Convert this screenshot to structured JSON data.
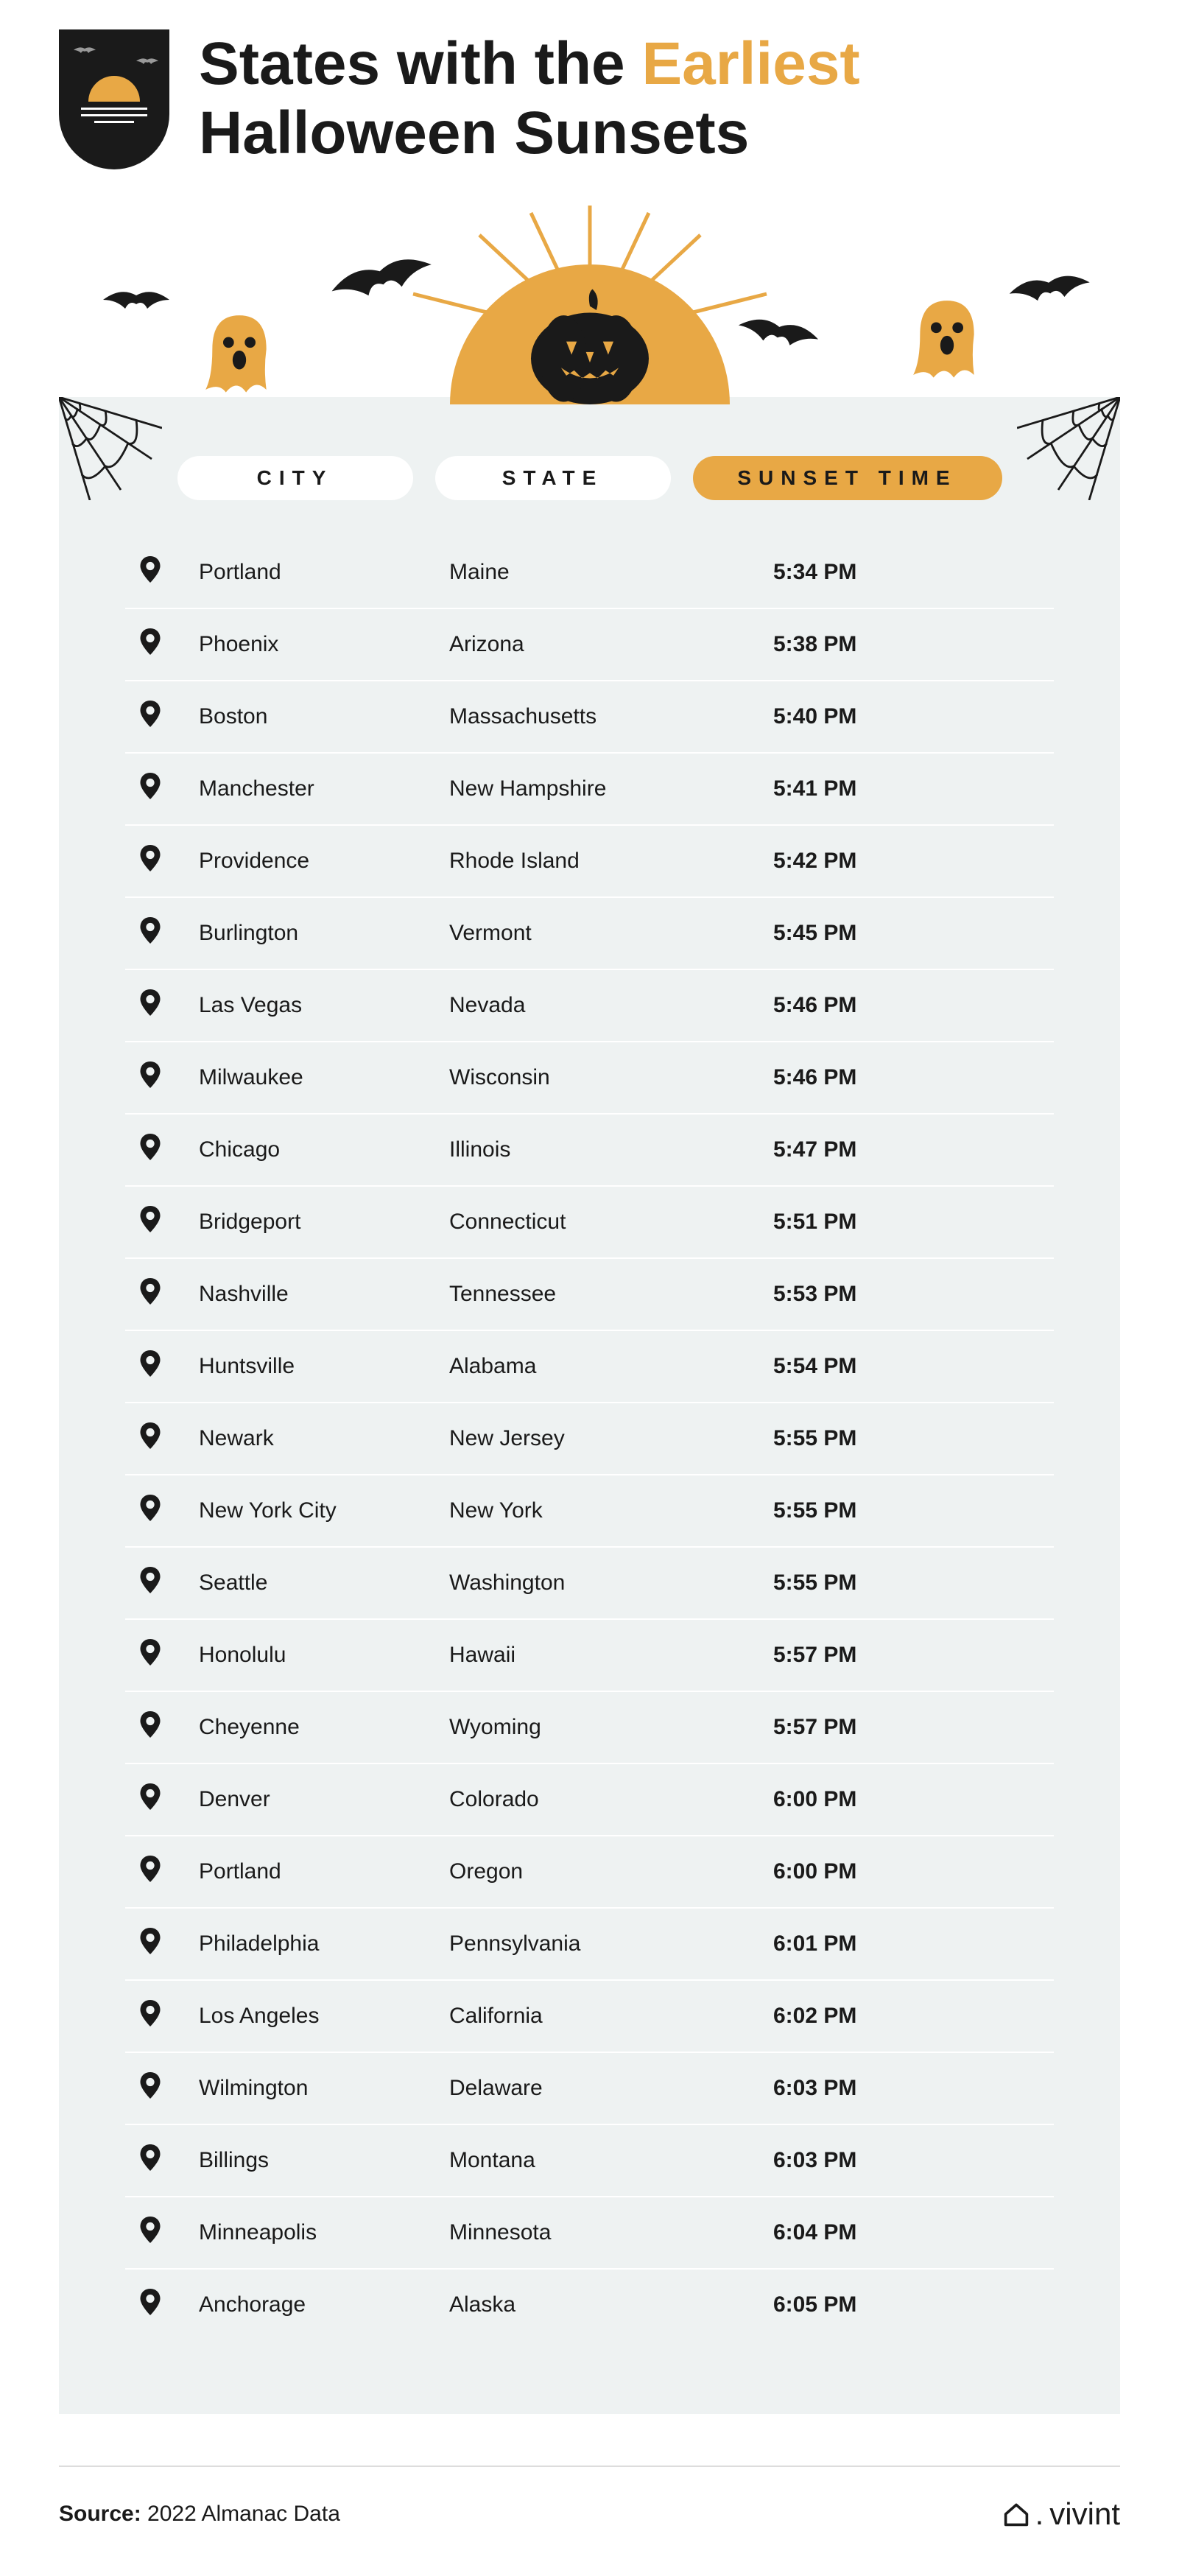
{
  "title_prefix": "States with the ",
  "title_accent": "Earliest",
  "title_suffix": "Halloween Sunsets",
  "colors": {
    "accent": "#e8a845",
    "text": "#1a1a1a",
    "card_bg": "#eef2f2",
    "white": "#ffffff",
    "divider": "#dddddd"
  },
  "headers": {
    "city": "CITY",
    "state": "STATE",
    "time": "SUNSET TIME"
  },
  "rows": [
    {
      "city": "Portland",
      "state": "Maine",
      "time": "5:34 PM"
    },
    {
      "city": "Phoenix",
      "state": "Arizona",
      "time": "5:38 PM"
    },
    {
      "city": "Boston",
      "state": "Massachusetts",
      "time": "5:40 PM"
    },
    {
      "city": "Manchester",
      "state": "New Hampshire",
      "time": "5:41 PM"
    },
    {
      "city": "Providence",
      "state": "Rhode Island",
      "time": "5:42 PM"
    },
    {
      "city": "Burlington",
      "state": "Vermont",
      "time": "5:45 PM"
    },
    {
      "city": "Las Vegas",
      "state": "Nevada",
      "time": "5:46 PM"
    },
    {
      "city": "Milwaukee",
      "state": "Wisconsin",
      "time": "5:46 PM"
    },
    {
      "city": "Chicago",
      "state": "Illinois",
      "time": "5:47 PM"
    },
    {
      "city": "Bridgeport",
      "state": "Connecticut",
      "time": "5:51 PM"
    },
    {
      "city": "Nashville",
      "state": "Tennessee",
      "time": "5:53 PM"
    },
    {
      "city": "Huntsville",
      "state": "Alabama",
      "time": "5:54 PM"
    },
    {
      "city": "Newark",
      "state": "New Jersey",
      "time": "5:55 PM"
    },
    {
      "city": "New York City",
      "state": "New York",
      "time": "5:55 PM"
    },
    {
      "city": "Seattle",
      "state": "Washington",
      "time": "5:55 PM"
    },
    {
      "city": "Honolulu",
      "state": "Hawaii",
      "time": "5:57 PM"
    },
    {
      "city": "Cheyenne",
      "state": "Wyoming",
      "time": "5:57 PM"
    },
    {
      "city": "Denver",
      "state": "Colorado",
      "time": "6:00 PM"
    },
    {
      "city": "Portland",
      "state": "Oregon",
      "time": "6:00 PM"
    },
    {
      "city": "Philadelphia",
      "state": "Pennsylvania",
      "time": "6:01 PM"
    },
    {
      "city": "Los Angeles",
      "state": "California",
      "time": "6:02 PM"
    },
    {
      "city": "Wilmington",
      "state": "Delaware",
      "time": "6:03 PM"
    },
    {
      "city": "Billings",
      "state": "Montana",
      "time": "6:03 PM"
    },
    {
      "city": "Minneapolis",
      "state": "Minnesota",
      "time": "6:04 PM"
    },
    {
      "city": "Anchorage",
      "state": "Alaska",
      "time": "6:05 PM"
    }
  ],
  "source_label": "Source: ",
  "source_value": "2022 Almanac Data",
  "brand": "vivint"
}
